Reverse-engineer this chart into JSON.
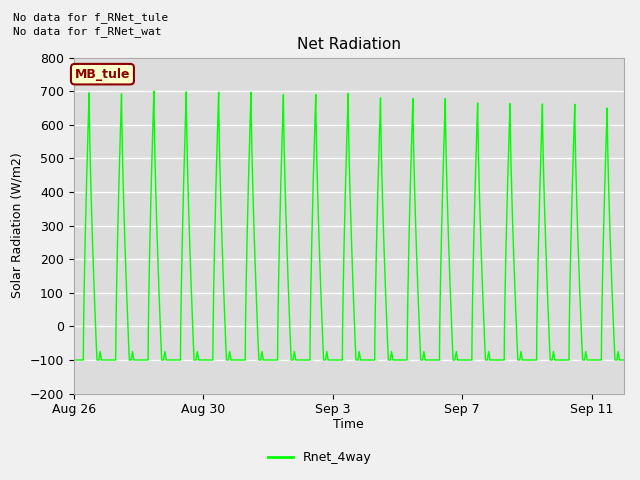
{
  "title": "Net Radiation",
  "ylabel": "Solar Radiation (W/m2)",
  "xlabel": "Time",
  "ylim": [
    -200,
    800
  ],
  "yticks": [
    -200,
    -100,
    0,
    100,
    200,
    300,
    400,
    500,
    600,
    700,
    800
  ],
  "xlim_days": [
    0,
    17
  ],
  "xtick_labels": [
    "Aug 26",
    "Aug 30",
    "Sep 3",
    "Sep 7",
    "Sep 11"
  ],
  "xtick_positions": [
    0,
    4,
    8,
    12,
    16
  ],
  "line_color": "#00FF00",
  "line_width": 1.0,
  "bg_color": "#DCDCDC",
  "legend_label": "Rnet_4way",
  "no_data_text1": "No data for f_RNet_tule",
  "no_data_text2": "No data for f_RNet_wat",
  "mb_tule_label": "MB_tule",
  "num_days": 17,
  "peak_values": [
    695,
    692,
    700,
    698,
    697,
    697,
    690,
    690,
    693,
    680,
    678,
    678,
    665,
    663,
    662,
    661,
    650
  ],
  "trough_value": -100,
  "figsize": [
    6.4,
    4.8
  ],
  "dpi": 100,
  "fig_bg": "#F0F0F0",
  "grid_color": "#FFFFFF",
  "title_fontsize": 11,
  "label_fontsize": 9,
  "tick_fontsize": 9
}
